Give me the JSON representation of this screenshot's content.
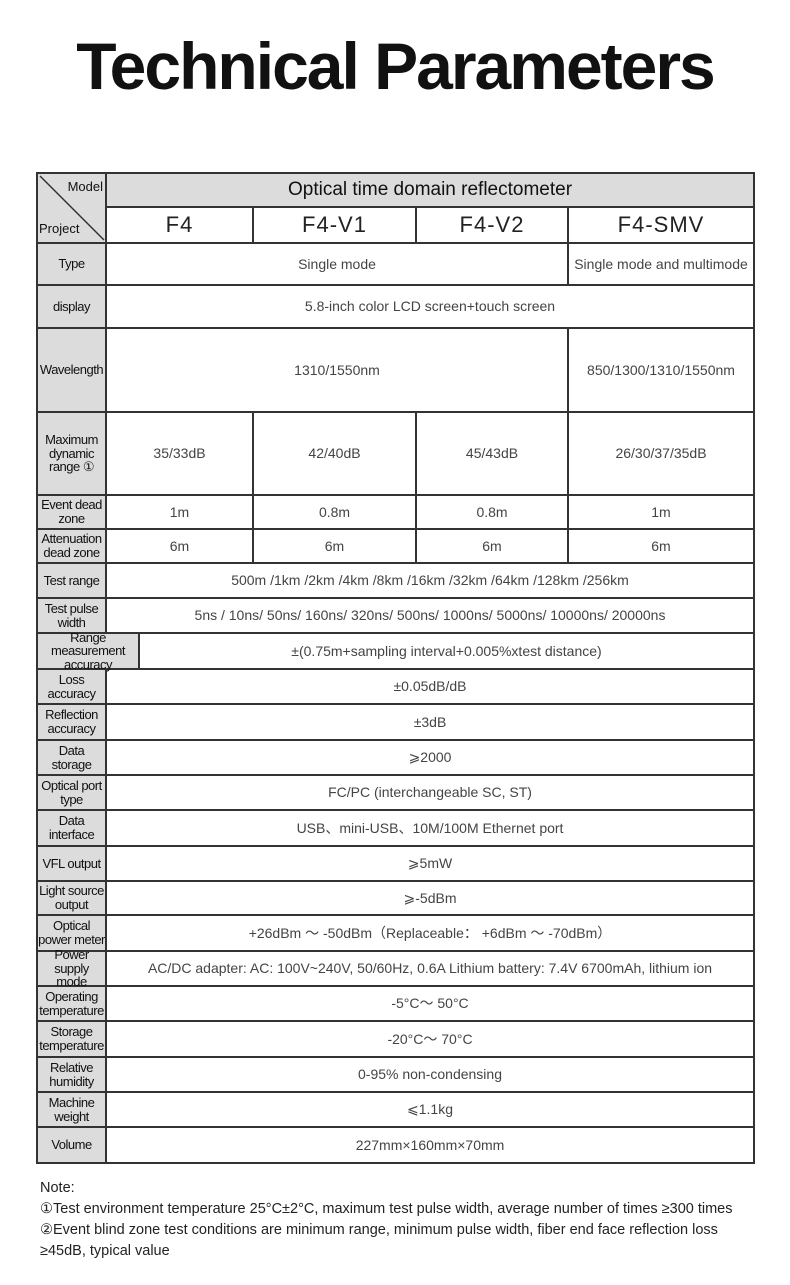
{
  "title": "Technical Parameters",
  "corner": {
    "model": "Model",
    "project": "Project"
  },
  "header": "Optical time domain reflectometer",
  "models": [
    "F4",
    "F4-V1",
    "F4-V2",
    "F4-SMV"
  ],
  "rows": [
    {
      "label": "Type",
      "cells": [
        {
          "text": "Single mode",
          "span": 3
        },
        {
          "text": "Single mode and multimode",
          "span": 1
        }
      ]
    },
    {
      "label": "display",
      "cells": [
        {
          "text": "5.8-inch color LCD screen+touch screen",
          "span": 4
        }
      ]
    },
    {
      "label": "Wavelength",
      "cells": [
        {
          "text": "1310/1550nm",
          "span": 3
        },
        {
          "text": "850/1300/1310/1550nm",
          "span": 1
        }
      ]
    },
    {
      "label": "Maximum dynamic range ①",
      "cells": [
        {
          "text": "35/33dB",
          "span": 1
        },
        {
          "text": "42/40dB",
          "span": 1
        },
        {
          "text": "45/43dB",
          "span": 1
        },
        {
          "text": "26/30/37/35dB",
          "span": 1
        }
      ]
    },
    {
      "label": "Event dead zone",
      "cells": [
        {
          "text": "1m",
          "span": 1
        },
        {
          "text": "0.8m",
          "span": 1
        },
        {
          "text": "0.8m",
          "span": 1
        },
        {
          "text": "1m",
          "span": 1
        }
      ]
    },
    {
      "label": "Attenuation dead zone",
      "cells": [
        {
          "text": "6m",
          "span": 1
        },
        {
          "text": "6m",
          "span": 1
        },
        {
          "text": "6m",
          "span": 1
        },
        {
          "text": "6m",
          "span": 1
        }
      ]
    },
    {
      "label": "Test range",
      "cells": [
        {
          "text": "500m /1km /2km /4km /8km /16km /32km /64km /128km /256km",
          "span": 4
        }
      ]
    },
    {
      "label": "Test pulse width",
      "cells": [
        {
          "text": "5ns / 10ns/ 50ns/ 160ns/ 320ns/ 500ns/ 1000ns/ 5000ns/ 10000ns/ 20000ns",
          "span": 4
        }
      ]
    },
    {
      "label": "Range measurement accuracy",
      "cells": [
        {
          "text": "±(0.75m+sampling interval+0.005%xtest distance)",
          "span": 4
        }
      ]
    },
    {
      "label": "Loss accuracy",
      "cells": [
        {
          "text": "±0.05dB/dB",
          "span": 4
        }
      ]
    },
    {
      "label": "Reflection accuracy",
      "cells": [
        {
          "text": "±3dB",
          "span": 4
        }
      ]
    },
    {
      "label": "Data storage",
      "cells": [
        {
          "text": "⩾2000",
          "span": 4
        }
      ]
    },
    {
      "label": "Optical port type",
      "cells": [
        {
          "text": "FC/PC (interchangeable SC, ST)",
          "span": 4
        }
      ]
    },
    {
      "label": "Data interface",
      "cells": [
        {
          "text": "USB、mini-USB、10M/100M Ethernet port",
          "span": 4
        }
      ]
    },
    {
      "label": "VFL output",
      "cells": [
        {
          "text": "⩾5mW",
          "span": 4
        }
      ]
    },
    {
      "label": "Light source output",
      "cells": [
        {
          "text": "⩾-5dBm",
          "span": 4
        }
      ]
    },
    {
      "label": "Optical power meter",
      "cells": [
        {
          "text": "+26dBm ～ -50dBm（Replaceable： +6dBm ～ -70dBm）",
          "span": 4
        }
      ]
    },
    {
      "label": "Power supply mode",
      "cells": [
        {
          "text": "AC/DC adapter: AC: 100V~240V, 50/60Hz, 0.6A Lithium battery: 7.4V 6700mAh, lithium ion",
          "span": 4
        }
      ]
    },
    {
      "label": "Operating temperature",
      "cells": [
        {
          "text": "-5°C～ 50°C",
          "span": 4
        }
      ]
    },
    {
      "label": "Storage temperature",
      "cells": [
        {
          "text": "-20°C～ 70°C",
          "span": 4
        }
      ]
    },
    {
      "label": "Relative humidity",
      "cells": [
        {
          "text": "0-95% non-condensing",
          "span": 4
        }
      ]
    },
    {
      "label": "Machine weight",
      "cells": [
        {
          "text": "⩽1.1kg",
          "span": 4
        }
      ]
    },
    {
      "label": "Volume",
      "cells": [
        {
          "text": "227mm×160mm×70mm",
          "span": 4
        }
      ]
    }
  ],
  "notes": [
    "Note:",
    "①Test environment temperature 25°C±2°C, maximum test pulse width, average number of times ≥300 times",
    "②Event blind zone test conditions are minimum range, minimum pulse width, fiber end face reflection loss ≥45dB, typical value"
  ]
}
